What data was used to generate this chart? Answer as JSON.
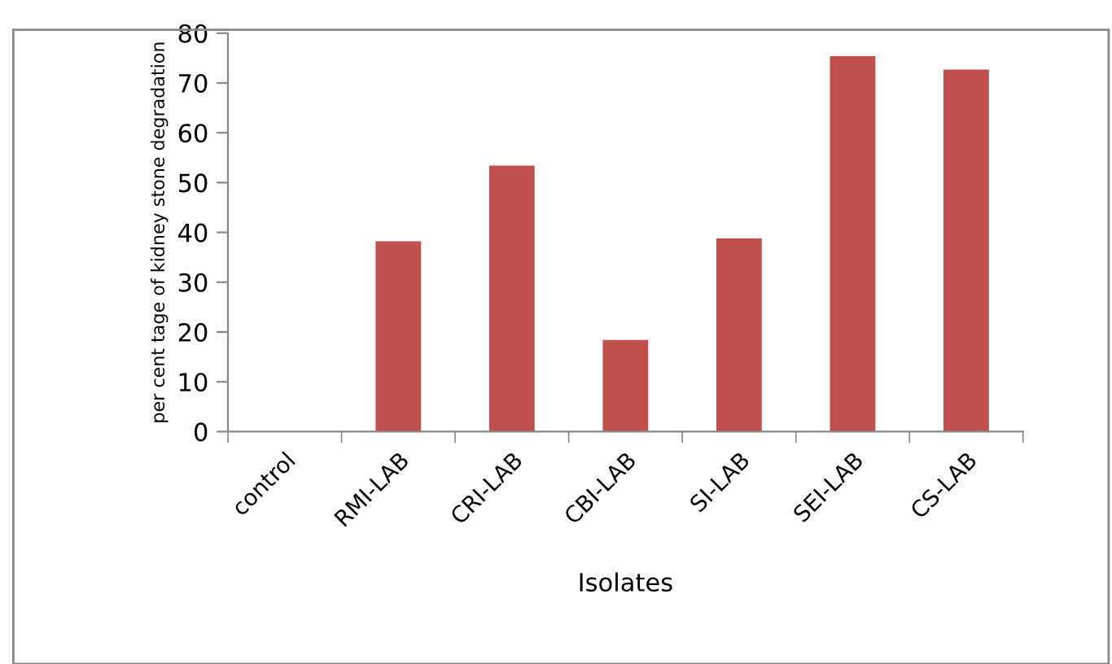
{
  "chart_data": {
    "type": "bar",
    "xlabel": "Isolates",
    "ylabel": "per cent tage of kidney stone degradation",
    "categories": [
      "control",
      "RMI-LAB",
      "CRI-LAB",
      "CBI-LAB",
      "SI-LAB",
      "SEI-LAB",
      "CS-LAB"
    ],
    "values": [
      0,
      38.2,
      53.4,
      18.4,
      38.8,
      75.4,
      72.7
    ],
    "color": "#c0504d",
    "ylim": [
      0,
      80
    ],
    "yticks": [
      0,
      10,
      20,
      30,
      40,
      50,
      60,
      70,
      80
    ],
    "grid": false
  }
}
